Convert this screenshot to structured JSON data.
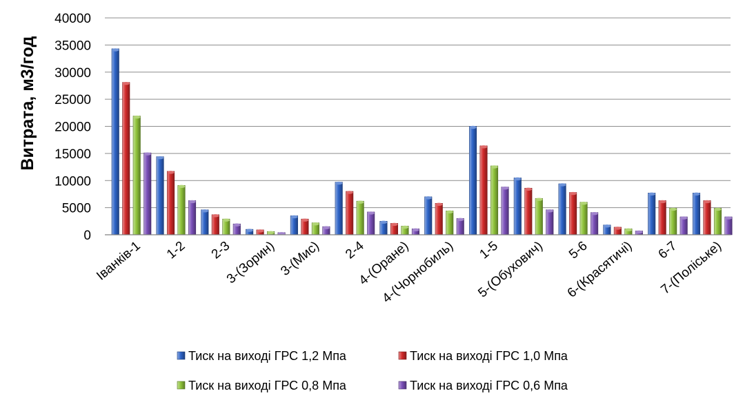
{
  "chart_data": {
    "type": "bar",
    "title": "",
    "xlabel": "",
    "ylabel": "Витрата, м3/год",
    "ylim": [
      0,
      40000
    ],
    "yticks": [
      0,
      5000,
      10000,
      15000,
      20000,
      25000,
      30000,
      35000,
      40000
    ],
    "grid": true,
    "legend_position": "bottom",
    "categories": [
      "Іванків-1",
      "1-2",
      "2-3",
      "3-(Зорин)",
      "3-(Мис)",
      "2-4",
      "4-(Оране)",
      "4-(Чорнобиль)",
      "1-5",
      "5-(Обухович)",
      "5-6",
      "6-(Красятичі)",
      "6-7",
      "7-(Поліське)"
    ],
    "series": [
      {
        "name": "Тиск на виході ГРС 1,2 Мпа",
        "color": "#2e64c8",
        "values": [
          34300,
          14400,
          4600,
          1000,
          3500,
          9700,
          2500,
          7000,
          20000,
          10500,
          9400,
          1800,
          7700,
          7700
        ]
      },
      {
        "name": "Тиск на виході ГРС 1,0 Мпа",
        "color": "#d12a2a",
        "values": [
          28100,
          11700,
          3700,
          900,
          2900,
          8000,
          2100,
          5800,
          16400,
          8600,
          7800,
          1400,
          6300,
          6300
        ]
      },
      {
        "name": "Тиск на виході ГРС 0,8 Мпа",
        "color": "#8fc33a",
        "values": [
          21900,
          9100,
          2900,
          600,
          2200,
          6200,
          1600,
          4400,
          12700,
          6700,
          6000,
          1100,
          4900,
          4900
        ]
      },
      {
        "name": "Тиск на виході ГРС 0,6 Мпа",
        "color": "#7a4fb8",
        "values": [
          15100,
          6300,
          2000,
          400,
          1500,
          4200,
          1100,
          3000,
          8800,
          4600,
          4100,
          700,
          3300,
          3300
        ]
      }
    ]
  }
}
